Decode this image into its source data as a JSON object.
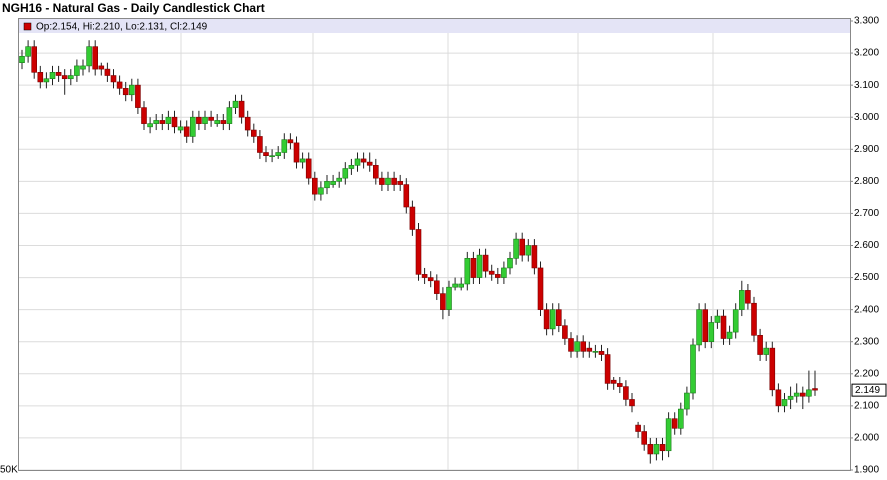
{
  "chart_data": {
    "type": "candlestick",
    "title": "NGH16 - Natural Gas - Daily Candlestick Chart",
    "ohlc_label": "Op:2.154, Hi:2.210, Lo:2.131, Cl:2.149",
    "volume_label": "50K",
    "up_color": "#33cc33",
    "down_color": "#cc0000",
    "ylim": [
      1.9,
      3.3
    ],
    "yticks": [
      {
        "value": 1.9,
        "label": "1.900"
      },
      {
        "value": 2.0,
        "label": "2.000"
      },
      {
        "value": 2.1,
        "label": "2.100"
      },
      {
        "value": 2.2,
        "label": "2.200"
      },
      {
        "value": 2.3,
        "label": "2.300"
      },
      {
        "value": 2.4,
        "label": "2.400"
      },
      {
        "value": 2.5,
        "label": "2.500"
      },
      {
        "value": 2.6,
        "label": "2.600"
      },
      {
        "value": 2.7,
        "label": "2.700"
      },
      {
        "value": 2.8,
        "label": "2.800"
      },
      {
        "value": 2.9,
        "label": "2.900"
      },
      {
        "value": 3.0,
        "label": "3.000"
      },
      {
        "value": 3.1,
        "label": "3.100"
      },
      {
        "value": 3.2,
        "label": "3.200"
      },
      {
        "value": 3.3,
        "label": "3.300"
      }
    ],
    "grid": true,
    "ohlc": [
      [
        3.17,
        3.21,
        3.15,
        3.19
      ],
      [
        3.19,
        3.24,
        3.17,
        3.22
      ],
      [
        3.22,
        3.24,
        3.12,
        3.14
      ],
      [
        3.14,
        3.16,
        3.09,
        3.11
      ],
      [
        3.11,
        3.14,
        3.09,
        3.12
      ],
      [
        3.12,
        3.16,
        3.1,
        3.14
      ],
      [
        3.14,
        3.16,
        3.11,
        3.13
      ],
      [
        3.13,
        3.15,
        3.07,
        3.12
      ],
      [
        3.12,
        3.15,
        3.1,
        3.13
      ],
      [
        3.13,
        3.18,
        3.11,
        3.16
      ],
      [
        3.15,
        3.18,
        3.13,
        3.16
      ],
      [
        3.16,
        3.24,
        3.14,
        3.22
      ],
      [
        3.22,
        3.24,
        3.13,
        3.15
      ],
      [
        3.16,
        3.17,
        3.13,
        3.15
      ],
      [
        3.15,
        3.17,
        3.11,
        3.13
      ],
      [
        3.13,
        3.15,
        3.09,
        3.11
      ],
      [
        3.11,
        3.13,
        3.07,
        3.09
      ],
      [
        3.09,
        3.11,
        3.05,
        3.07
      ],
      [
        3.07,
        3.12,
        3.05,
        3.1
      ],
      [
        3.1,
        3.12,
        3.01,
        3.03
      ],
      [
        3.03,
        3.05,
        2.96,
        2.98
      ],
      [
        2.97,
        3.0,
        2.95,
        2.98
      ],
      [
        2.98,
        3.01,
        2.96,
        2.99
      ],
      [
        2.99,
        3.01,
        2.96,
        2.98
      ],
      [
        2.98,
        3.02,
        2.96,
        3.0
      ],
      [
        3.0,
        3.02,
        2.95,
        2.97
      ],
      [
        2.96,
        2.99,
        2.95,
        2.97
      ],
      [
        2.97,
        2.99,
        2.92,
        2.94
      ],
      [
        2.94,
        3.02,
        2.92,
        3.0
      ],
      [
        3.0,
        3.02,
        2.96,
        2.98
      ],
      [
        2.98,
        3.02,
        2.96,
        3.0
      ],
      [
        3.0,
        3.02,
        2.97,
        2.99
      ],
      [
        2.98,
        3.01,
        2.97,
        2.99
      ],
      [
        2.99,
        3.01,
        2.96,
        2.98
      ],
      [
        2.98,
        3.05,
        2.96,
        3.03
      ],
      [
        3.03,
        3.07,
        3.01,
        3.05
      ],
      [
        3.05,
        3.07,
        2.98,
        3.0
      ],
      [
        3.0,
        3.02,
        2.94,
        2.96
      ],
      [
        2.96,
        2.98,
        2.92,
        2.94
      ],
      [
        2.94,
        2.96,
        2.87,
        2.89
      ],
      [
        2.89,
        2.91,
        2.86,
        2.88
      ],
      [
        2.88,
        2.9,
        2.86,
        2.88
      ],
      [
        2.88,
        2.91,
        2.87,
        2.89
      ],
      [
        2.89,
        2.95,
        2.87,
        2.93
      ],
      [
        2.93,
        2.95,
        2.9,
        2.92
      ],
      [
        2.92,
        2.94,
        2.84,
        2.86
      ],
      [
        2.86,
        2.89,
        2.84,
        2.87
      ],
      [
        2.87,
        2.89,
        2.79,
        2.81
      ],
      [
        2.81,
        2.83,
        2.74,
        2.76
      ],
      [
        2.76,
        2.8,
        2.74,
        2.78
      ],
      [
        2.78,
        2.82,
        2.76,
        2.8
      ],
      [
        2.79,
        2.82,
        2.78,
        2.8
      ],
      [
        2.8,
        2.83,
        2.78,
        2.81
      ],
      [
        2.81,
        2.86,
        2.79,
        2.84
      ],
      [
        2.84,
        2.87,
        2.82,
        2.85
      ],
      [
        2.85,
        2.89,
        2.83,
        2.87
      ],
      [
        2.87,
        2.89,
        2.84,
        2.86
      ],
      [
        2.86,
        2.89,
        2.83,
        2.85
      ],
      [
        2.85,
        2.87,
        2.79,
        2.81
      ],
      [
        2.81,
        2.83,
        2.77,
        2.79
      ],
      [
        2.79,
        2.83,
        2.77,
        2.81
      ],
      [
        2.81,
        2.83,
        2.77,
        2.79
      ],
      [
        2.8,
        2.82,
        2.77,
        2.79
      ],
      [
        2.79,
        2.81,
        2.7,
        2.72
      ],
      [
        2.72,
        2.74,
        2.63,
        2.65
      ],
      [
        2.65,
        2.67,
        2.49,
        2.51
      ],
      [
        2.51,
        2.53,
        2.48,
        2.5
      ],
      [
        2.5,
        2.52,
        2.47,
        2.49
      ],
      [
        2.49,
        2.51,
        2.43,
        2.45
      ],
      [
        2.45,
        2.47,
        2.37,
        2.4
      ],
      [
        2.4,
        2.49,
        2.38,
        2.47
      ],
      [
        2.47,
        2.5,
        2.46,
        2.48
      ],
      [
        2.47,
        2.5,
        2.46,
        2.48
      ],
      [
        2.48,
        2.58,
        2.46,
        2.56
      ],
      [
        2.56,
        2.58,
        2.48,
        2.5
      ],
      [
        2.5,
        2.59,
        2.48,
        2.57
      ],
      [
        2.57,
        2.59,
        2.5,
        2.52
      ],
      [
        2.52,
        2.54,
        2.49,
        2.51
      ],
      [
        2.51,
        2.53,
        2.48,
        2.5
      ],
      [
        2.5,
        2.55,
        2.48,
        2.53
      ],
      [
        2.53,
        2.58,
        2.51,
        2.56
      ],
      [
        2.56,
        2.64,
        2.54,
        2.62
      ],
      [
        2.62,
        2.64,
        2.55,
        2.57
      ],
      [
        2.57,
        2.62,
        2.55,
        2.6
      ],
      [
        2.6,
        2.62,
        2.51,
        2.53
      ],
      [
        2.53,
        2.55,
        2.38,
        2.4
      ],
      [
        2.4,
        2.42,
        2.32,
        2.34
      ],
      [
        2.34,
        2.42,
        2.32,
        2.4
      ],
      [
        2.4,
        2.42,
        2.33,
        2.35
      ],
      [
        2.35,
        2.37,
        2.29,
        2.31
      ],
      [
        2.31,
        2.33,
        2.25,
        2.27
      ],
      [
        2.27,
        2.32,
        2.25,
        2.3
      ],
      [
        2.3,
        2.32,
        2.25,
        2.27
      ],
      [
        2.28,
        2.3,
        2.25,
        2.27
      ],
      [
        2.27,
        2.29,
        2.25,
        2.27
      ],
      [
        2.27,
        2.29,
        2.24,
        2.26
      ],
      [
        2.26,
        2.28,
        2.15,
        2.17
      ],
      [
        2.18,
        2.19,
        2.15,
        2.17
      ],
      [
        2.17,
        2.19,
        2.14,
        2.16
      ],
      [
        2.16,
        2.18,
        2.1,
        2.12
      ],
      [
        2.12,
        2.14,
        2.08,
        2.1
      ],
      [
        2.04,
        2.05,
        2.0,
        2.02
      ],
      [
        2.02,
        2.04,
        1.96,
        1.98
      ],
      [
        1.98,
        2.0,
        1.92,
        1.95
      ],
      [
        1.95,
        2.0,
        1.93,
        1.98
      ],
      [
        1.98,
        2.0,
        1.93,
        1.96
      ],
      [
        1.96,
        2.08,
        1.94,
        2.06
      ],
      [
        2.06,
        2.08,
        2.01,
        2.03
      ],
      [
        2.03,
        2.11,
        2.01,
        2.09
      ],
      [
        2.09,
        2.16,
        2.07,
        2.14
      ],
      [
        2.14,
        2.31,
        2.12,
        2.29
      ],
      [
        2.29,
        2.42,
        2.27,
        2.4
      ],
      [
        2.4,
        2.42,
        2.28,
        2.3
      ],
      [
        2.3,
        2.38,
        2.28,
        2.36
      ],
      [
        2.36,
        2.4,
        2.34,
        2.38
      ],
      [
        2.38,
        2.4,
        2.29,
        2.31
      ],
      [
        2.31,
        2.35,
        2.29,
        2.33
      ],
      [
        2.33,
        2.42,
        2.31,
        2.4
      ],
      [
        2.4,
        2.49,
        2.38,
        2.46
      ],
      [
        2.46,
        2.48,
        2.4,
        2.42
      ],
      [
        2.42,
        2.44,
        2.3,
        2.32
      ],
      [
        2.32,
        2.34,
        2.24,
        2.26
      ],
      [
        2.26,
        2.3,
        2.24,
        2.28
      ],
      [
        2.28,
        2.3,
        2.13,
        2.15
      ],
      [
        2.15,
        2.17,
        2.08,
        2.1
      ],
      [
        2.1,
        2.14,
        2.08,
        2.12
      ],
      [
        2.12,
        2.16,
        2.09,
        2.13
      ],
      [
        2.13,
        2.17,
        2.11,
        2.14
      ],
      [
        2.14,
        2.16,
        2.09,
        2.13
      ],
      [
        2.13,
        2.21,
        2.11,
        2.15
      ],
      [
        2.154,
        2.21,
        2.131,
        2.149
      ]
    ]
  }
}
